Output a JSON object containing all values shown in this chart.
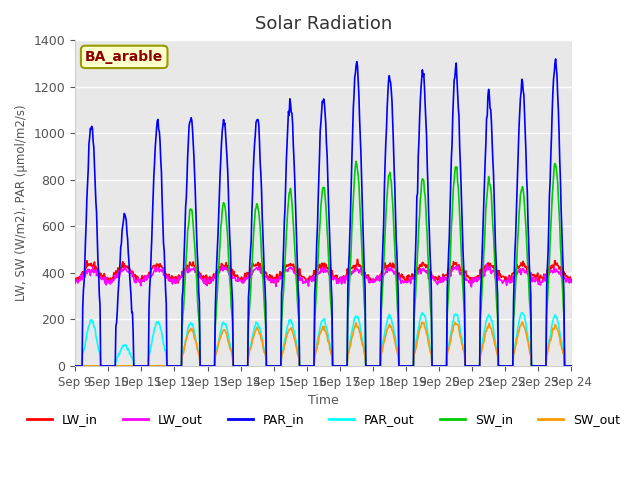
{
  "title": "Solar Radiation",
  "xlabel": "Time",
  "ylabel": "LW, SW (W/m2), PAR (μmol/m2/s)",
  "station_label": "BA_arable",
  "ylim": [
    0,
    1400
  ],
  "plot_bg": "#e8e8e8",
  "series": {
    "LW_in": {
      "color": "#ff0000",
      "lw": 1.2
    },
    "LW_out": {
      "color": "#ff00ff",
      "lw": 1.2
    },
    "PAR_in": {
      "color": "#0000ff",
      "lw": 1.2
    },
    "PAR_out": {
      "color": "#00ffff",
      "lw": 1.2
    },
    "SW_in": {
      "color": "#00cc00",
      "lw": 1.2
    },
    "SW_out": {
      "color": "#ff9900",
      "lw": 1.2
    }
  },
  "x_tick_labels": [
    "Sep 9",
    "Sep 10",
    "Sep 11",
    "Sep 12",
    "Sep 13",
    "Sep 14",
    "Sep 15",
    "Sep 16",
    "Sep 17",
    "Sep 18",
    "Sep 19",
    "Sep 20",
    "Sep 21",
    "Sep 22",
    "Sep 23",
    "Sep 24"
  ],
  "n_days": 15,
  "pts_per_day": 48,
  "day_peak_PAR": [
    1040,
    640,
    1050,
    1060,
    1065,
    1070,
    1140,
    1160,
    1300,
    1240,
    1270,
    1270,
    1170,
    1215,
    1300
  ],
  "day_peak_SW": [
    0,
    0,
    0,
    680,
    700,
    700,
    750,
    770,
    870,
    830,
    800,
    850,
    800,
    775,
    865
  ],
  "day_peak_PAR_out": [
    195,
    90,
    190,
    185,
    185,
    185,
    195,
    200,
    215,
    215,
    230,
    225,
    220,
    230,
    215
  ],
  "day_peak_SW_out": [
    0,
    0,
    0,
    160,
    155,
    160,
    160,
    165,
    175,
    175,
    185,
    185,
    175,
    185,
    175
  ],
  "lw_in_base": 370,
  "lw_out_base": 360,
  "lw_in_day_bump": 65,
  "lw_out_day_bump": 55
}
